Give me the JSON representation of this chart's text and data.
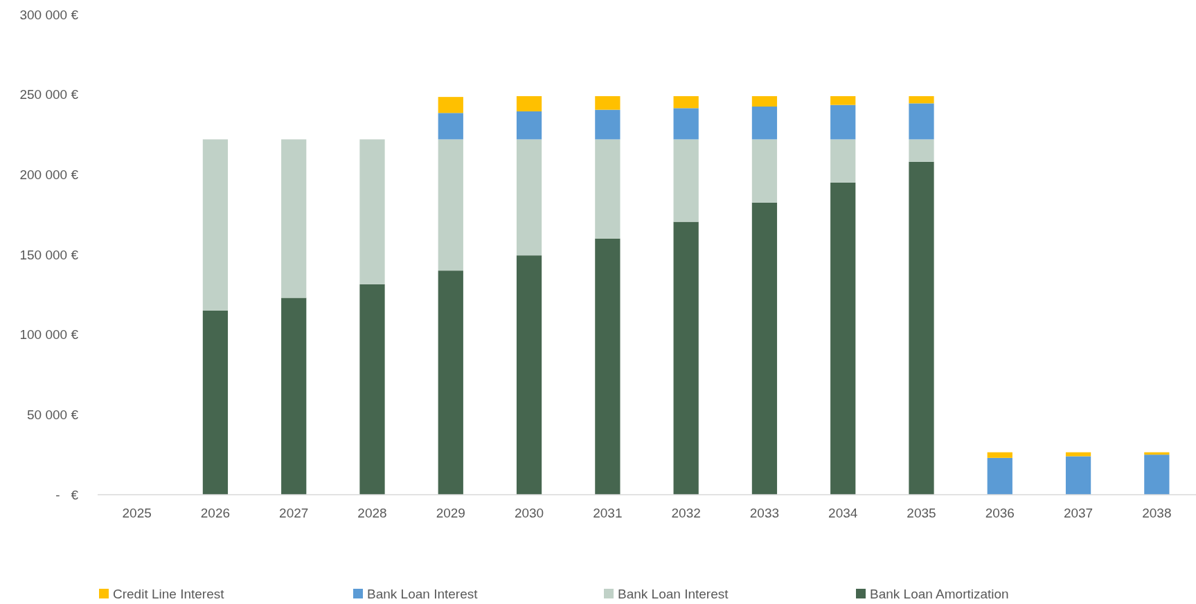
{
  "chart_data": {
    "type": "bar",
    "stacked": true,
    "categories": [
      "2025",
      "2026",
      "2027",
      "2028",
      "2029",
      "2030",
      "2031",
      "2032",
      "2033",
      "2034",
      "2035",
      "2036",
      "2037",
      "2038"
    ],
    "series": [
      {
        "name": "Bank Loan Amortization",
        "color": "#46664f",
        "values": [
          null,
          115000,
          123000,
          131500,
          140000,
          149500,
          160000,
          170500,
          182500,
          195000,
          208000,
          null,
          null,
          null
        ]
      },
      {
        "name": "Bank Loan Interest",
        "color": "#c0d1c7",
        "values": [
          null,
          107000,
          99000,
          90500,
          82000,
          72500,
          62000,
          51500,
          39500,
          27000,
          14000,
          null,
          null,
          null
        ]
      },
      {
        "name": "Bank Loan Interest",
        "color": "#5b9bd5",
        "values": [
          null,
          null,
          null,
          null,
          16500,
          17500,
          18500,
          19500,
          20500,
          21500,
          22500,
          23000,
          24000,
          25000
        ]
      },
      {
        "name": "Credit Line Interest",
        "color": "#ffc000",
        "values": [
          null,
          null,
          null,
          null,
          10000,
          9500,
          8500,
          7500,
          6500,
          5500,
          4500,
          3500,
          2500,
          1500
        ]
      }
    ],
    "ylim": [
      0,
      300000
    ],
    "yticks": [
      {
        "value": 0,
        "label": "-   €"
      },
      {
        "value": 50000,
        "label": "50 000 €"
      },
      {
        "value": 100000,
        "label": "100 000 €"
      },
      {
        "value": 150000,
        "label": "150 000 €"
      },
      {
        "value": 200000,
        "label": "200 000 €"
      },
      {
        "value": 250000,
        "label": "250 000 €"
      },
      {
        "value": 300000,
        "label": "300 000 €"
      }
    ],
    "grid": false,
    "legend": "bottom"
  }
}
